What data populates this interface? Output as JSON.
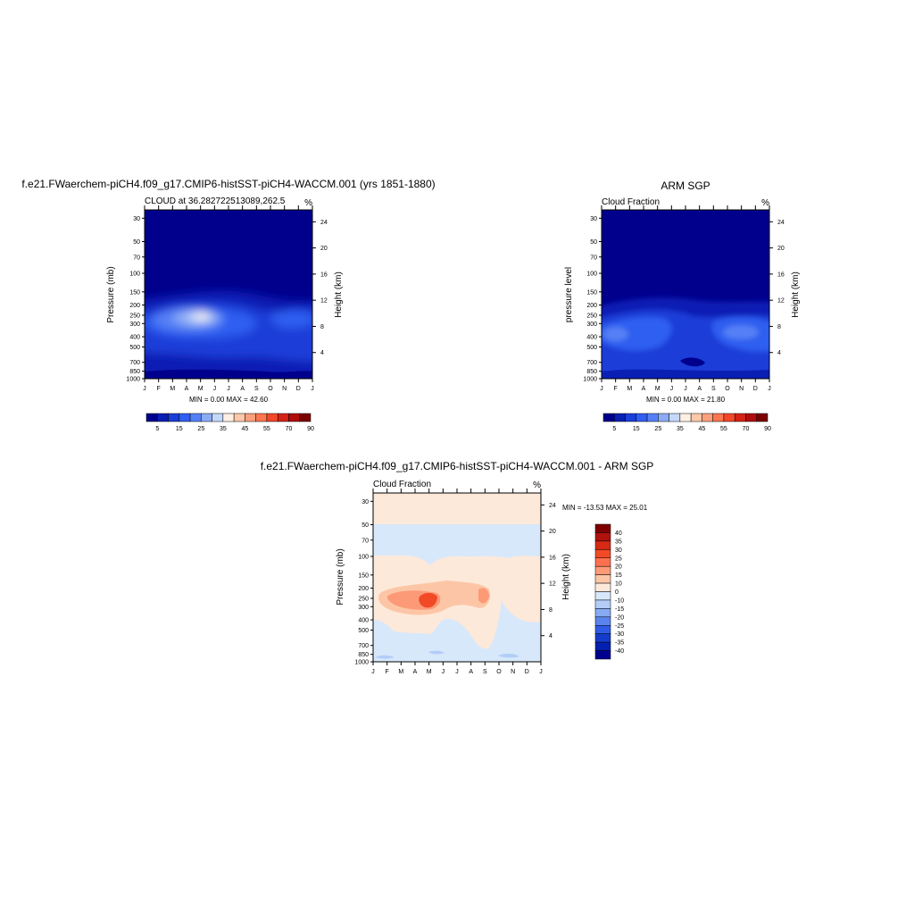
{
  "panels": [
    {
      "title": "f.e21.FWaerchem-piCH4.f09_g17.CMIP6-histSST-piCH4-WACCM.001 (yrs 1851-1880)",
      "subtitle_left": "CLOUD at 36.282722513089,262.5",
      "subtitle_right": "%",
      "ylabel": "Pressure (mb)",
      "ylabel_right": "Height (km)",
      "minmax": "MIN =   0.00 MAX =  42.60"
    },
    {
      "title": "ARM SGP",
      "subtitle_left": "Cloud Fraction",
      "subtitle_right": "%",
      "ylabel": "pressure level",
      "ylabel_right": "Height (km)",
      "minmax": "MIN =   0.00 MAX =  21.80"
    },
    {
      "title": "f.e21.FWaerchem-piCH4.f09_g17.CMIP6-histSST-piCH4-WACCM.001 - ARM SGP",
      "subtitle_left": "Cloud Fraction",
      "subtitle_right": "%",
      "ylabel": "Pressure (mb)",
      "ylabel_right": "Height (km)",
      "minmax": "MIN = -13.53 MAX =  25.01"
    }
  ],
  "colorbar_abs": {
    "labels": [
      "5",
      "15",
      "25",
      "35",
      "45",
      "55",
      "70",
      "90"
    ],
    "colors": [
      "#00008c",
      "#0a1fb4",
      "#1a3ed8",
      "#2f5ef0",
      "#5580f5",
      "#8cabf5",
      "#c4d8fa",
      "#fff0e4",
      "#fcc8aa",
      "#fca07c",
      "#fc7650",
      "#f2472a",
      "#d42214",
      "#b00c0c",
      "#7a0000"
    ]
  },
  "colorbar_diff": {
    "labels": [
      "40",
      "35",
      "30",
      "25",
      "20",
      "15",
      "10",
      "0",
      "-10",
      "-15",
      "-20",
      "-25",
      "-30",
      "-35",
      "-40"
    ],
    "colors": [
      "#800000",
      "#b0120e",
      "#d62a14",
      "#f24a26",
      "#fc7050",
      "#fc9a78",
      "#fcc6a6",
      "#fde9d9",
      "#d7e8fb",
      "#b3cdf7",
      "#86abf3",
      "#5a84ec",
      "#2f5ce4",
      "#143ccc",
      "#0420b0",
      "#000090"
    ]
  },
  "chart_data": [
    {
      "type": "heatmap",
      "title": "f.e21.FWaerchem-piCH4.f09_g17.CMIP6-histSST-piCH4-WACCM.001 (yrs 1851-1880)",
      "subtitle": "CLOUD at 36.282722513089,262.5",
      "units": "%",
      "xlabel": "",
      "ylabel": "Pressure (mb)",
      "ylabel_right": "Height (km)",
      "x_ticks": [
        "J",
        "F",
        "M",
        "A",
        "M",
        "J",
        "J",
        "A",
        "S",
        "O",
        "N",
        "D",
        "J"
      ],
      "y_ticks": [
        30,
        50,
        70,
        100,
        150,
        200,
        250,
        300,
        400,
        500,
        700,
        850,
        1000
      ],
      "y_right_ticks": [
        4,
        8,
        12,
        16,
        20,
        24
      ],
      "y_log": true,
      "ylim": [
        1000,
        25
      ],
      "min": 0.0,
      "max": 42.6,
      "features": [
        {
          "month": 4.5,
          "pressure": 240,
          "value": 42.6
        },
        {
          "month": 2.5,
          "pressure": 270,
          "value": 30
        },
        {
          "month": 10.5,
          "pressure": 250,
          "value": 15
        },
        {
          "month": 7.0,
          "pressure": 500,
          "value": 5
        }
      ]
    },
    {
      "type": "heatmap",
      "title": "ARM SGP",
      "subtitle": "Cloud Fraction",
      "units": "%",
      "ylabel": "pressure level",
      "ylabel_right": "Height (km)",
      "x_ticks": [
        "J",
        "F",
        "M",
        "A",
        "M",
        "J",
        "J",
        "A",
        "S",
        "O",
        "N",
        "D",
        "J"
      ],
      "y_ticks": [
        30,
        50,
        70,
        100,
        150,
        200,
        250,
        300,
        400,
        500,
        700,
        850,
        1000
      ],
      "y_right_ticks": [
        4,
        8,
        12,
        16,
        20,
        24
      ],
      "y_log": true,
      "ylim": [
        1000,
        25
      ],
      "min": 0.0,
      "max": 21.8,
      "features": [
        {
          "month": 3.5,
          "pressure": 250,
          "value": 15
        },
        {
          "month": 6.5,
          "pressure": 700,
          "value": 2
        }
      ]
    },
    {
      "type": "heatmap",
      "title": "f.e21.FWaerchem-piCH4.f09_g17.CMIP6-histSST-piCH4-WACCM.001 - ARM SGP",
      "subtitle": "Cloud Fraction",
      "units": "%",
      "ylabel": "Pressure (mb)",
      "ylabel_right": "Height (km)",
      "x_ticks": [
        "J",
        "F",
        "M",
        "A",
        "M",
        "J",
        "J",
        "A",
        "S",
        "O",
        "N",
        "D",
        "J"
      ],
      "y_ticks": [
        30,
        50,
        70,
        100,
        150,
        200,
        250,
        300,
        400,
        500,
        700,
        850,
        1000
      ],
      "y_right_ticks": [
        4,
        8,
        12,
        16,
        20,
        24
      ],
      "y_log": true,
      "ylim": [
        1000,
        25
      ],
      "min": -13.53,
      "max": 25.01,
      "features": [
        {
          "month": 4.0,
          "pressure": 260,
          "value": 25
        },
        {
          "month": 2.5,
          "pressure": 240,
          "value": 15
        },
        {
          "month": 7.5,
          "pressure": 500,
          "value": 5
        },
        {
          "month": 6.0,
          "pressure": 600,
          "value": -5
        },
        {
          "month": 6.0,
          "pressure": 70,
          "value": -5
        }
      ]
    }
  ]
}
